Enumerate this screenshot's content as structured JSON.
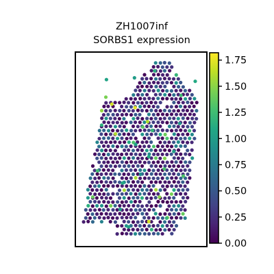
{
  "chart_data": {
    "type": "scatter",
    "title_lines": [
      "ZH1007inf",
      "SORBS1 expression"
    ],
    "xlabel": "",
    "ylabel": "",
    "axes_ticks_visible": false,
    "grid": false,
    "colormap": "viridis",
    "color_range": [
      0.0,
      1.82
    ],
    "colorbar": {
      "ticks": [
        0.0,
        0.25,
        0.5,
        0.75,
        1.0,
        1.25,
        1.5,
        1.75
      ],
      "tick_labels": [
        "0.00",
        "0.25",
        "0.50",
        "0.75",
        "1.00",
        "1.25",
        "1.50",
        "1.75"
      ]
    },
    "highlights": [
      {
        "u": 0.215,
        "v": 0.11,
        "value": 1.05
      },
      {
        "u": 0.21,
        "v": 0.21,
        "value": 1.45
      },
      {
        "u": 0.26,
        "v": 0.25,
        "value": 1.7
      },
      {
        "u": 0.175,
        "v": 0.37,
        "value": 1.15
      },
      {
        "u": 0.14,
        "v": 0.63,
        "value": 1.25
      },
      {
        "u": 0.29,
        "v": 0.42,
        "value": 1.6
      },
      {
        "u": 0.45,
        "v": 0.1,
        "value": 1.0
      },
      {
        "u": 0.455,
        "v": 0.27,
        "value": 1.75
      },
      {
        "u": 0.52,
        "v": 0.38,
        "value": 1.35
      },
      {
        "u": 0.56,
        "v": 0.35,
        "value": 1.6
      },
      {
        "u": 0.6,
        "v": 0.4,
        "value": 1.2
      },
      {
        "u": 0.57,
        "v": 0.55,
        "value": 1.1
      },
      {
        "u": 0.7,
        "v": 0.62,
        "value": 1.3
      },
      {
        "u": 0.66,
        "v": 0.78,
        "value": 1.5
      },
      {
        "u": 0.57,
        "v": 0.92,
        "value": 1.7
      },
      {
        "u": 0.72,
        "v": 0.9,
        "value": 1.2
      },
      {
        "u": 0.4,
        "v": 0.95,
        "value": 1.05
      },
      {
        "u": 0.78,
        "v": 0.52,
        "value": 1.0
      },
      {
        "u": 0.84,
        "v": 0.2,
        "value": 1.25
      },
      {
        "u": 0.96,
        "v": 0.12,
        "value": 1.1
      },
      {
        "u": 0.62,
        "v": 0.06,
        "value": 1.15
      },
      {
        "u": 0.83,
        "v": 0.36,
        "value": 0.95
      },
      {
        "u": 0.86,
        "v": 0.66,
        "value": 1.3
      },
      {
        "u": 0.35,
        "v": 0.7,
        "value": 1.1
      },
      {
        "u": 0.1,
        "v": 0.78,
        "value": 1.4
      },
      {
        "u": 0.33,
        "v": 0.85,
        "value": 1.0
      },
      {
        "u": 0.5,
        "v": 0.65,
        "value": 0.9
      },
      {
        "u": 0.46,
        "v": 0.48,
        "value": 1.05
      }
    ]
  }
}
